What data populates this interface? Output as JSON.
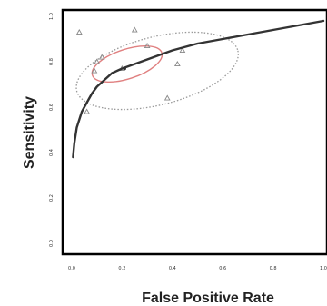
{
  "chart_data": {
    "type": "scatter",
    "title": "",
    "xlabel": "False Positive Rate",
    "ylabel": "Sensitivity",
    "xlim": [
      0,
      1
    ],
    "ylim": [
      0,
      1
    ],
    "xticks": [
      "0.0",
      "0.2",
      "0.4",
      "0.6",
      "0.8",
      "1.0"
    ],
    "yticks": [
      "0.0",
      "0.2",
      "0.4",
      "0.6",
      "0.8",
      "1.0"
    ],
    "grid": false,
    "legend": "none",
    "colors": {
      "curve": "#333333",
      "points": "#888888",
      "confidence_region": "#e08080",
      "prediction_region": "#999999",
      "frame": "#000000"
    },
    "points": [
      {
        "x": 0.03,
        "y": 0.93
      },
      {
        "x": 0.25,
        "y": 0.94
      },
      {
        "x": 0.1,
        "y": 0.8
      },
      {
        "x": 0.12,
        "y": 0.82
      },
      {
        "x": 0.09,
        "y": 0.76
      },
      {
        "x": 0.3,
        "y": 0.87
      },
      {
        "x": 0.42,
        "y": 0.79
      },
      {
        "x": 0.38,
        "y": 0.64
      },
      {
        "x": 0.06,
        "y": 0.58
      },
      {
        "x": 0.2,
        "y": 0.77
      },
      {
        "x": 0.44,
        "y": 0.85
      }
    ],
    "sroc_curve": [
      [
        0.005,
        0.38
      ],
      [
        0.01,
        0.44
      ],
      [
        0.02,
        0.51
      ],
      [
        0.04,
        0.58
      ],
      [
        0.06,
        0.62
      ],
      [
        0.08,
        0.66
      ],
      [
        0.1,
        0.69
      ],
      [
        0.13,
        0.72
      ],
      [
        0.16,
        0.75
      ],
      [
        0.2,
        0.77
      ],
      [
        0.25,
        0.79
      ],
      [
        0.3,
        0.81
      ],
      [
        0.35,
        0.83
      ],
      [
        0.4,
        0.85
      ],
      [
        0.5,
        0.88
      ],
      [
        0.6,
        0.9
      ],
      [
        0.7,
        0.92
      ],
      [
        0.8,
        0.94
      ],
      [
        0.9,
        0.96
      ],
      [
        1.0,
        0.98
      ]
    ],
    "summary_point": {
      "x": 0.21,
      "y": 0.77
    },
    "confidence_region": {
      "cx": 0.22,
      "cy": 0.79,
      "rx": 0.145,
      "ry": 0.065,
      "rotation_deg": -18
    },
    "prediction_region": {
      "cx": 0.34,
      "cy": 0.76,
      "rx": 0.33,
      "ry": 0.15,
      "rotation_deg": -14
    }
  }
}
